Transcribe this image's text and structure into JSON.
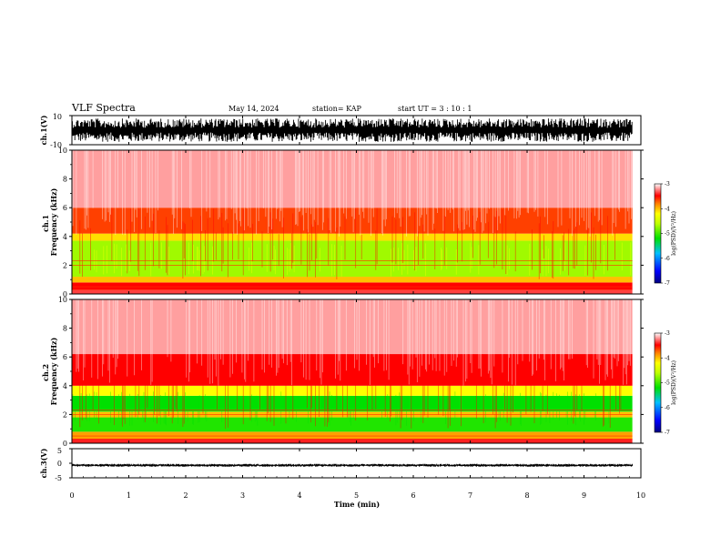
{
  "header": {
    "title": "VLF Spectra",
    "date": "May 14, 2024",
    "station": "station= KAP",
    "start": "start  UT =   3  : 10 : 1"
  },
  "colors": {
    "spectrum_low": "#000080",
    "spectrum_mid": "#00e000",
    "spectrum_high_yellow": "#ffff00",
    "spectrum_high_red": "#ff0000",
    "background": "#ffffff",
    "trace": "#000000"
  },
  "chart_data": [
    {
      "type": "line",
      "name": "ch1-waveform",
      "ylabel": "ch.1(V)",
      "ylim": [
        -10,
        10
      ],
      "y_ticks": [
        "10",
        "-10"
      ],
      "xlim": [
        0,
        10
      ],
      "x_end_min": 9.85,
      "band_envelope_volts": [
        -8,
        8
      ]
    },
    {
      "type": "heatmap",
      "name": "ch1-spectrogram",
      "ylabel": "ch.1\nFrequency (kHz)",
      "ylim": [
        0,
        10
      ],
      "y_ticks": [
        "0",
        "2",
        "4",
        "6",
        "8",
        "10"
      ],
      "xlim": [
        0,
        10
      ],
      "x_end_min": 9.85,
      "profile_khz": [
        {
          "f_min": 0.0,
          "f_max": 0.3,
          "level": -3.6
        },
        {
          "f_min": 0.3,
          "f_max": 0.8,
          "level": -3.8
        },
        {
          "f_min": 0.8,
          "f_max": 1.2,
          "level": -4.2
        },
        {
          "f_min": 1.2,
          "f_max": 3.7,
          "level": -4.7
        },
        {
          "f_min": 3.7,
          "f_max": 4.2,
          "level": -4.3
        },
        {
          "f_min": 4.2,
          "f_max": 6.0,
          "level": -3.9
        },
        {
          "f_min": 6.0,
          "f_max": 10.0,
          "level": -3.3
        }
      ],
      "colorbar": {
        "label": "log(PSD)(V²/Hz)",
        "ticks": [
          "-3",
          "-4",
          "-5",
          "-6",
          "-7"
        ],
        "range": [
          -7,
          -3
        ]
      }
    },
    {
      "type": "heatmap",
      "name": "ch2-spectrogram",
      "ylabel": "ch.2\nFrequency (kHz)",
      "ylim": [
        0,
        10
      ],
      "y_ticks": [
        "0",
        "2",
        "4",
        "6",
        "8",
        "10"
      ],
      "xlim": [
        0,
        10
      ],
      "x_end_min": 9.85,
      "profile_khz": [
        {
          "f_min": 0.0,
          "f_max": 0.3,
          "level": -3.7
        },
        {
          "f_min": 0.3,
          "f_max": 0.8,
          "level": -4.1
        },
        {
          "f_min": 0.8,
          "f_max": 1.8,
          "level": -5.1
        },
        {
          "f_min": 1.8,
          "f_max": 2.2,
          "level": -4.2
        },
        {
          "f_min": 2.2,
          "f_max": 3.3,
          "level": -5.2
        },
        {
          "f_min": 3.3,
          "f_max": 4.0,
          "level": -4.4
        },
        {
          "f_min": 4.0,
          "f_max": 6.2,
          "level": -3.8
        },
        {
          "f_min": 6.2,
          "f_max": 10.0,
          "level": -3.3
        }
      ],
      "colorbar": {
        "label": "log(PSD)(V²/Hz)",
        "ticks": [
          "-3",
          "-4",
          "-5",
          "-6",
          "-7"
        ],
        "range": [
          -7,
          -3
        ]
      }
    },
    {
      "type": "line",
      "name": "ch3-waveform",
      "ylabel": "ch.3(V)",
      "ylim": [
        -5,
        5
      ],
      "y_ticks": [
        "5",
        "0",
        "-5"
      ],
      "xlim": [
        0,
        10
      ],
      "x_end_min": 9.85,
      "band_envelope_volts": [
        -1.2,
        -0.2
      ]
    }
  ],
  "x_axis": {
    "label": "Time (min)",
    "ticks": [
      "0",
      "1",
      "2",
      "3",
      "4",
      "5",
      "6",
      "7",
      "8",
      "9",
      "10"
    ]
  }
}
